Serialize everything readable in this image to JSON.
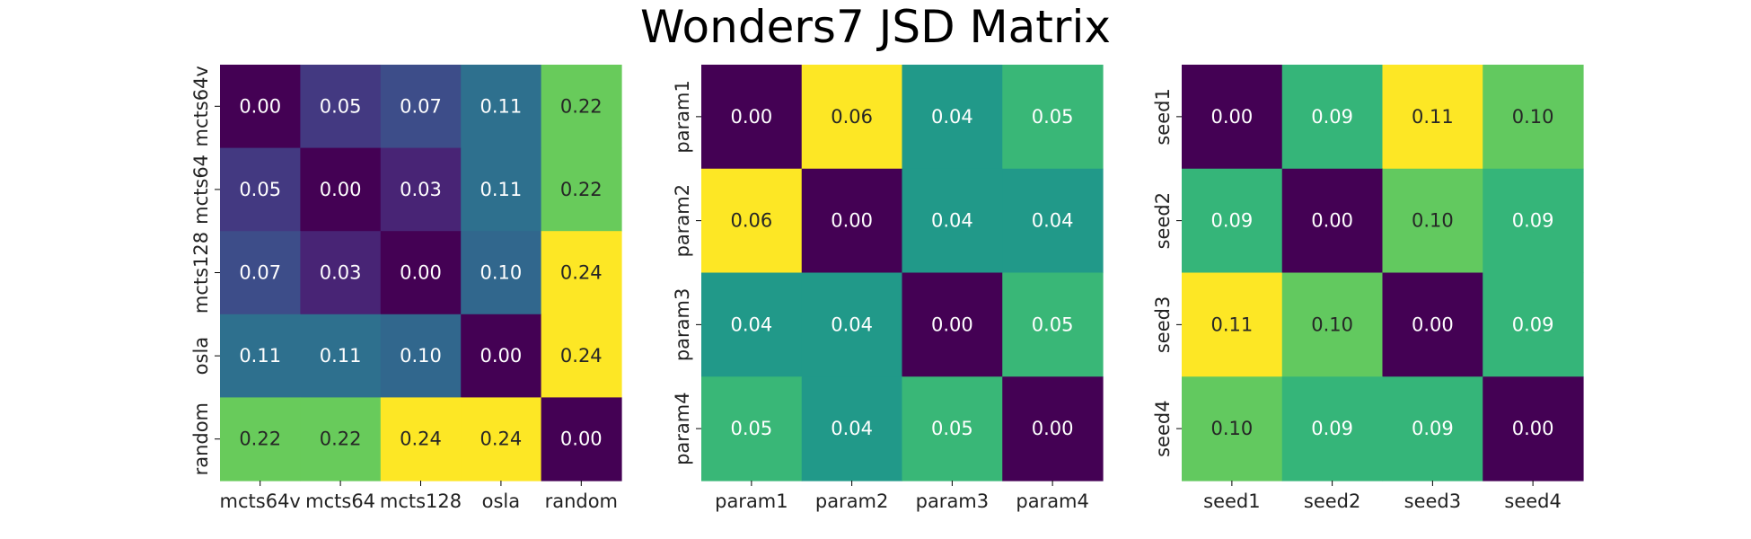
{
  "figure": {
    "title": "Wonders7 JSD Matrix"
  },
  "chart_data": [
    {
      "type": "heatmap",
      "title": "",
      "xlabel": "",
      "ylabel": "",
      "x_labels": [
        "mcts64v",
        "mcts64",
        "mcts128",
        "osla",
        "random"
      ],
      "y_labels": [
        "mcts64v",
        "mcts64",
        "mcts128",
        "osla",
        "random"
      ],
      "values": [
        [
          0.0,
          0.05,
          0.07,
          0.11,
          0.22
        ],
        [
          0.05,
          0.0,
          0.03,
          0.11,
          0.22
        ],
        [
          0.07,
          0.03,
          0.0,
          0.1,
          0.24
        ],
        [
          0.11,
          0.11,
          0.1,
          0.0,
          0.24
        ],
        [
          0.22,
          0.22,
          0.24,
          0.24,
          0.0
        ]
      ],
      "colormap": "viridis",
      "annotation_format": "0.00"
    },
    {
      "type": "heatmap",
      "title": "",
      "xlabel": "",
      "ylabel": "",
      "x_labels": [
        "param1",
        "param2",
        "param3",
        "param4"
      ],
      "y_labels": [
        "param1",
        "param2",
        "param3",
        "param4"
      ],
      "values": [
        [
          0.0,
          0.06,
          0.04,
          0.05
        ],
        [
          0.06,
          0.0,
          0.04,
          0.04
        ],
        [
          0.04,
          0.04,
          0.0,
          0.05
        ],
        [
          0.05,
          0.04,
          0.05,
          0.0
        ]
      ],
      "colormap": "viridis",
      "annotation_format": "0.00"
    },
    {
      "type": "heatmap",
      "title": "",
      "xlabel": "",
      "ylabel": "",
      "x_labels": [
        "seed1",
        "seed2",
        "seed3",
        "seed4"
      ],
      "y_labels": [
        "seed1",
        "seed2",
        "seed3",
        "seed4"
      ],
      "values": [
        [
          0.0,
          0.09,
          0.11,
          0.1
        ],
        [
          0.09,
          0.0,
          0.1,
          0.09
        ],
        [
          0.11,
          0.1,
          0.0,
          0.09
        ],
        [
          0.1,
          0.09,
          0.09,
          0.0
        ]
      ],
      "colormap": "viridis",
      "annotation_format": "0.00"
    }
  ]
}
